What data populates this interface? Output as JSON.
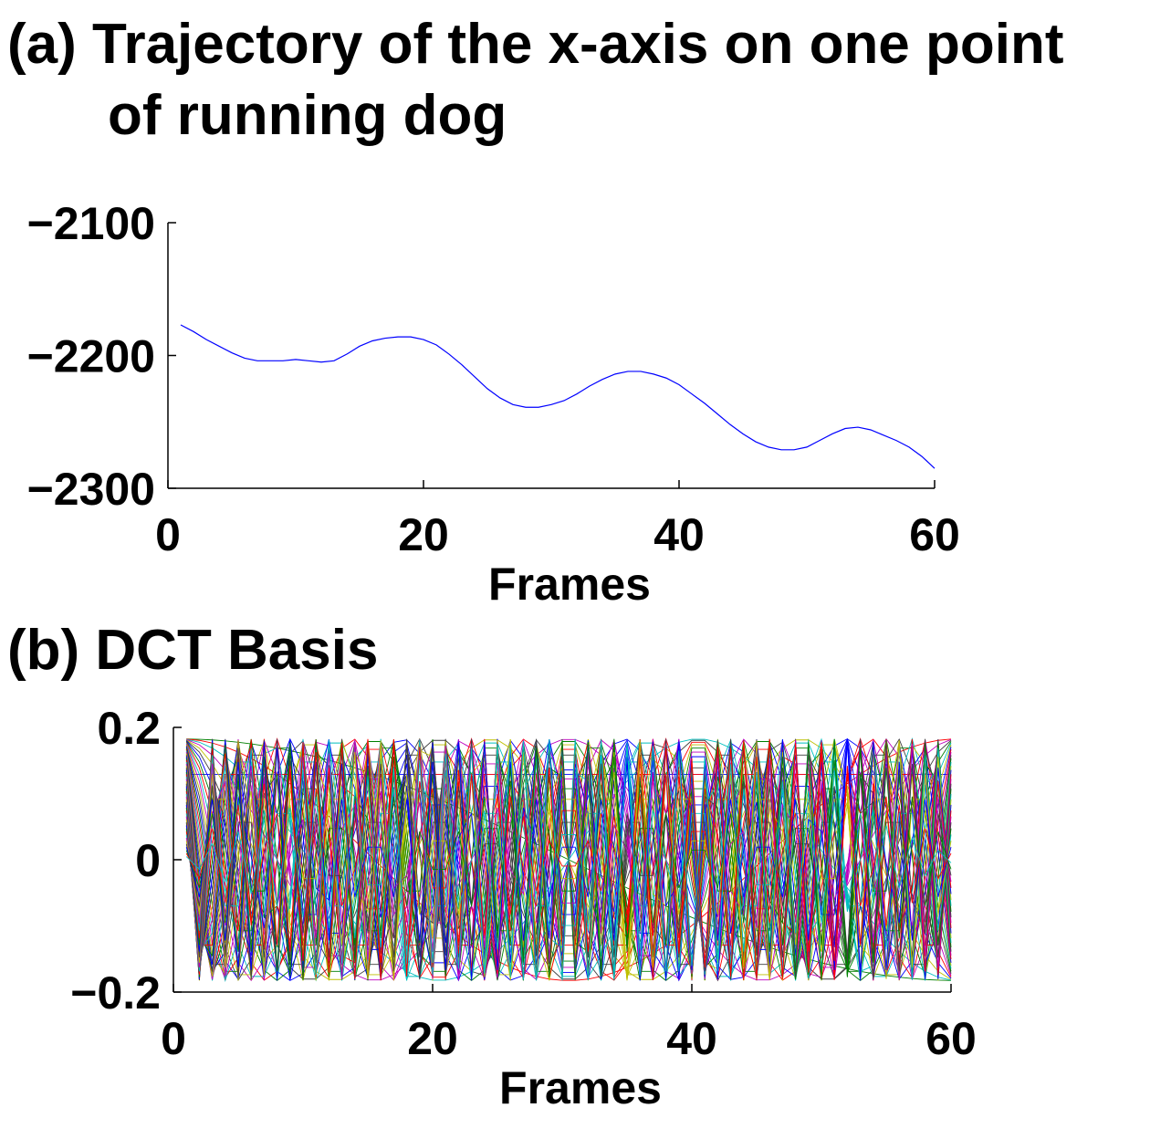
{
  "titles": {
    "a_line1": "(a) Trajectory of the x-axis on one point",
    "a_line2": "of running dog",
    "b": "(b) DCT Basis"
  },
  "chart_data": [
    {
      "id": "a",
      "type": "line",
      "title": "(a) Trajectory of the x-axis on one point of running dog",
      "xlabel": "Frames",
      "ylabel": "",
      "xlim": [
        0,
        60
      ],
      "ylim": [
        -2300,
        -2100
      ],
      "xticks": [
        0,
        20,
        40,
        60
      ],
      "xtick_labels": [
        "0",
        "20",
        "40",
        "60"
      ],
      "yticks": [
        -2100,
        -2200,
        -2300
      ],
      "ytick_labels": [
        "−2100",
        "−2200",
        "−2300"
      ],
      "grid": false,
      "series": [
        {
          "color": "#0000ff",
          "x": [
            1,
            2,
            3,
            4,
            5,
            6,
            7,
            8,
            9,
            10,
            11,
            12,
            13,
            14,
            15,
            16,
            17,
            18,
            19,
            20,
            21,
            22,
            23,
            24,
            25,
            26,
            27,
            28,
            29,
            30,
            31,
            32,
            33,
            34,
            35,
            36,
            37,
            38,
            39,
            40,
            41,
            42,
            43,
            44,
            45,
            46,
            47,
            48,
            49,
            50,
            51,
            52,
            53,
            54,
            55,
            56,
            57,
            58,
            59,
            60
          ],
          "y": [
            -2177,
            -2182,
            -2188,
            -2193,
            -2198,
            -2202,
            -2204,
            -2204,
            -2204,
            -2203,
            -2204,
            -2205,
            -2204,
            -2199,
            -2193,
            -2189,
            -2187,
            -2186,
            -2186,
            -2188,
            -2192,
            -2199,
            -2207,
            -2216,
            -2225,
            -2232,
            -2237,
            -2239,
            -2239,
            -2237,
            -2234,
            -2229,
            -2223,
            -2218,
            -2214,
            -2212,
            -2212,
            -2214,
            -2217,
            -2222,
            -2229,
            -2236,
            -2244,
            -2252,
            -2259,
            -2265,
            -2269,
            -2271,
            -2271,
            -2269,
            -2264,
            -2259,
            -2255,
            -2254,
            -2256,
            -2260,
            -2264,
            -2269,
            -2276,
            -2285
          ]
        }
      ]
    },
    {
      "id": "b",
      "type": "line",
      "title": "(b) DCT Basis",
      "xlabel": "Frames",
      "ylabel": "",
      "xlim": [
        0,
        60
      ],
      "ylim": [
        -0.2,
        0.2
      ],
      "xticks": [
        0,
        20,
        40,
        60
      ],
      "xtick_labels": [
        "0",
        "20",
        "40",
        "60"
      ],
      "yticks": [
        0.2,
        0,
        -0.2
      ],
      "ytick_labels": [
        "0.2",
        "0",
        "−0.2"
      ],
      "grid": false,
      "basis": {
        "kind": "DCT-II orthonormal basis vectors",
        "n_frames": 60,
        "n_basis": 60,
        "x_start": 1,
        "x_end": 60,
        "k0_value": 0.1291,
        "amplitude": 0.1826
      },
      "colors": [
        "#0000ff",
        "#007f00",
        "#ff0000",
        "#00bfbf",
        "#bf00bf",
        "#bfbf00",
        "#3f3f3f"
      ]
    }
  ]
}
